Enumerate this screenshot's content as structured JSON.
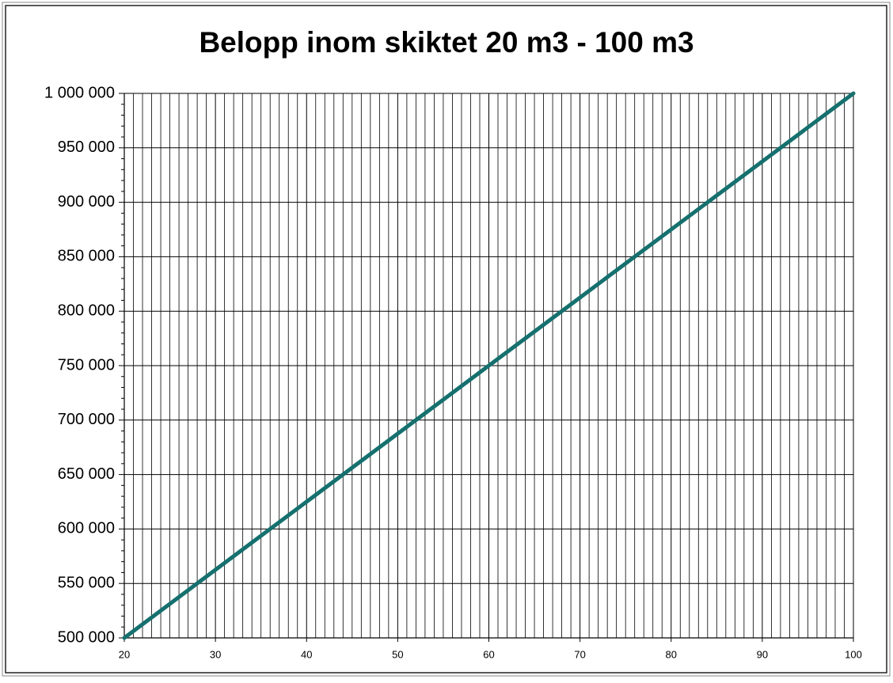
{
  "chart_data": {
    "type": "line",
    "title": "Belopp inom skiktet 20 m3 - 100 m3",
    "x": [
      20,
      100
    ],
    "values": [
      500000,
      1000000
    ],
    "color": "#15706e",
    "xlim": [
      20,
      100
    ],
    "xticks": [
      20,
      30,
      40,
      50,
      60,
      70,
      80,
      90,
      100
    ],
    "ylim": [
      500000,
      1000000
    ],
    "yticks": [
      {
        "value": 500000,
        "label": "500 000"
      },
      {
        "value": 550000,
        "label": "550 000"
      },
      {
        "value": 600000,
        "label": "600 000"
      },
      {
        "value": 650000,
        "label": "650 000"
      },
      {
        "value": 700000,
        "label": "700 000"
      },
      {
        "value": 750000,
        "label": "750 000"
      },
      {
        "value": 800000,
        "label": "800 000"
      },
      {
        "value": 850000,
        "label": "850 000"
      },
      {
        "value": 900000,
        "label": "900 000"
      },
      {
        "value": 950000,
        "label": "950 000"
      },
      {
        "value": 1000000,
        "label": "1 000 000"
      }
    ],
    "grid": true
  }
}
